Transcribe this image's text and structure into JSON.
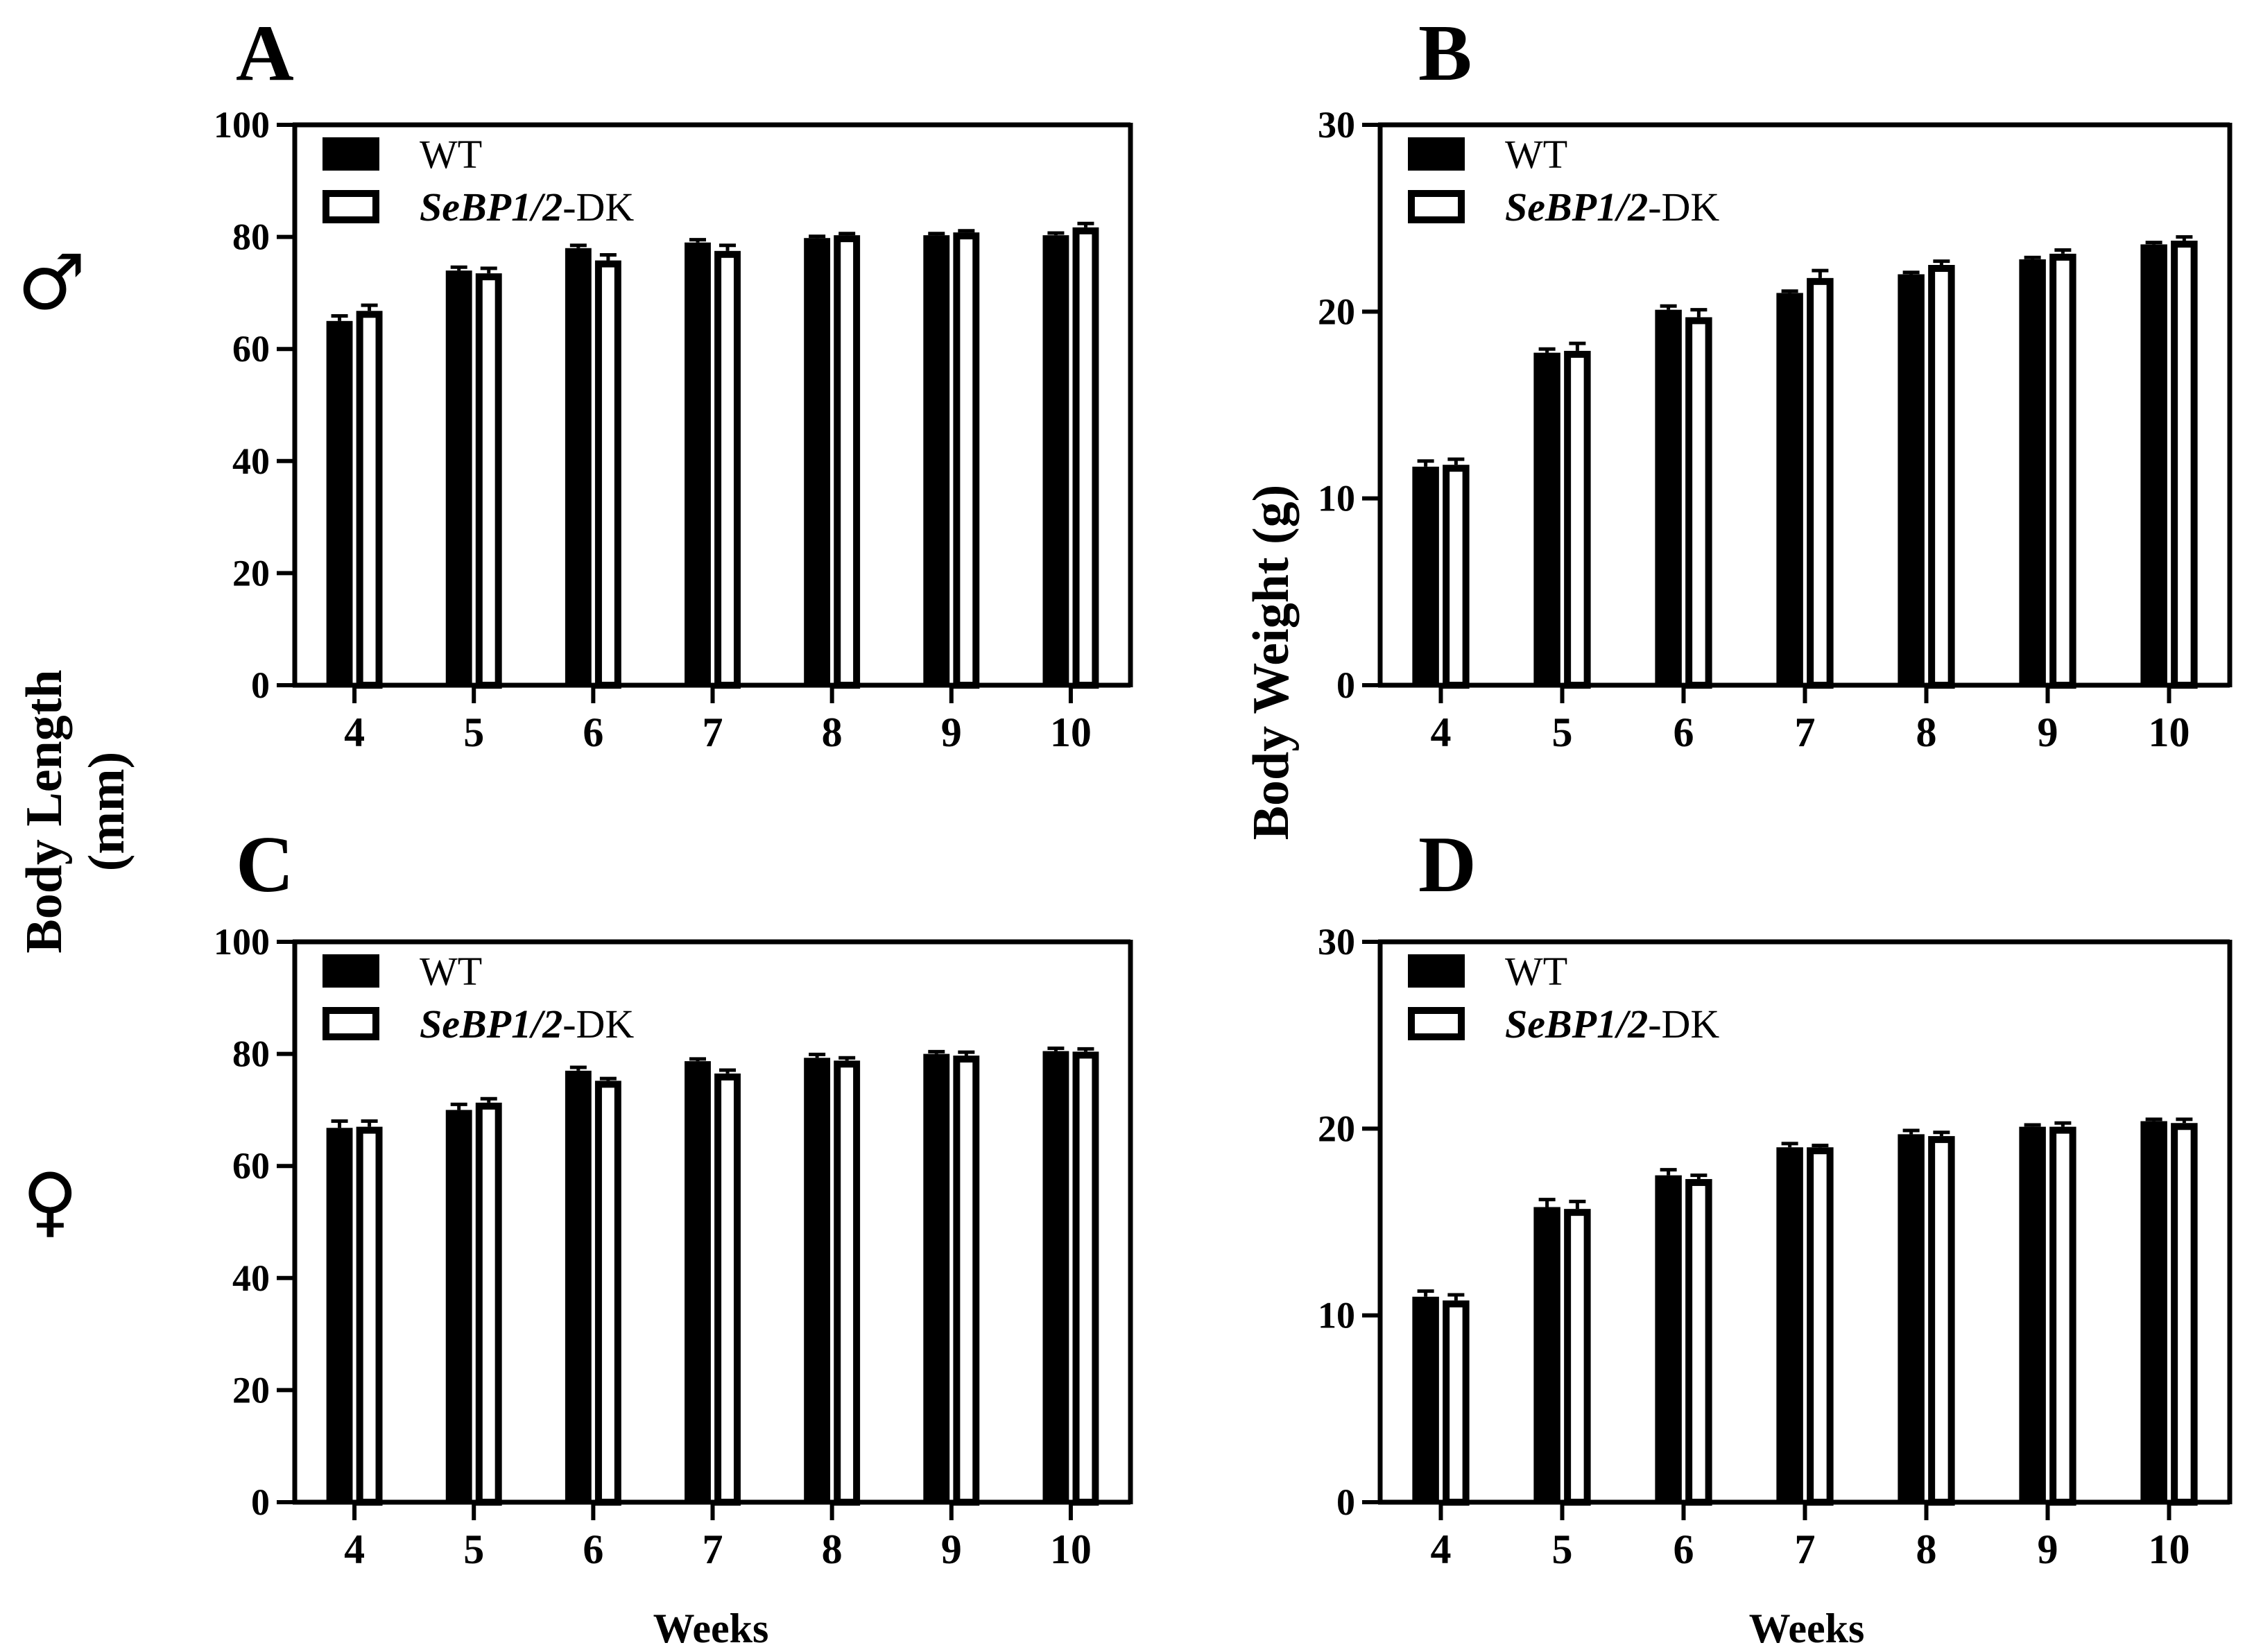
{
  "figure": {
    "sex_labels": {
      "male": "♂",
      "female": "♀"
    },
    "left_ylabel_line1": "Body Length",
    "left_ylabel_line2": "(mm)",
    "right_ylabel": "Body Weight (g)",
    "xlabel": "Weeks"
  },
  "chart_data": [
    {
      "panel": "A",
      "type": "bar",
      "categories": [
        "4",
        "5",
        "6",
        "7",
        "8",
        "9",
        "10"
      ],
      "ylim": [
        0,
        100
      ],
      "yticks": [
        "0",
        "20",
        "40",
        "60",
        "80",
        "100"
      ],
      "ytick_values": [
        0,
        20,
        40,
        60,
        80,
        100
      ],
      "xlabel": "",
      "legend": {
        "placement": "top-left"
      },
      "series": [
        {
          "name": "WT",
          "values": [
            65.0,
            74.0,
            78.0,
            79.0,
            79.8,
            80.3,
            80.3
          ],
          "errors": [
            0.9,
            0.6,
            0.5,
            0.5,
            0.3,
            0.3,
            0.4
          ]
        },
        {
          "name_italic": "SeBP1/2",
          "name_suffix": "-DK",
          "values": [
            66.8,
            73.5,
            75.8,
            77.5,
            80.3,
            80.8,
            81.7
          ],
          "errors": [
            1.0,
            0.9,
            1.0,
            1.0,
            0.3,
            0.3,
            0.7
          ]
        }
      ]
    },
    {
      "panel": "B",
      "type": "bar",
      "categories": [
        "4",
        "5",
        "6",
        "7",
        "8",
        "9",
        "10"
      ],
      "ylim": [
        0,
        30
      ],
      "yticks": [
        "0",
        "10",
        "20",
        "30"
      ],
      "ytick_values": [
        0,
        10,
        20,
        30
      ],
      "xlabel": "",
      "legend": {
        "placement": "top-left"
      },
      "series": [
        {
          "name": "WT",
          "values": [
            11.7,
            17.8,
            20.1,
            21.0,
            22.0,
            22.8,
            23.6
          ],
          "errors": [
            0.3,
            0.2,
            0.2,
            0.1,
            0.1,
            0.1,
            0.1
          ]
        },
        {
          "name_italic": "SeBP1/2",
          "name_suffix": "-DK",
          "values": [
            11.8,
            17.9,
            19.7,
            21.8,
            22.5,
            23.1,
            23.8
          ],
          "errors": [
            0.3,
            0.4,
            0.4,
            0.4,
            0.2,
            0.2,
            0.2
          ]
        }
      ]
    },
    {
      "panel": "C",
      "type": "bar",
      "categories": [
        "4",
        "5",
        "6",
        "7",
        "8",
        "9",
        "10"
      ],
      "ylim": [
        0,
        100
      ],
      "yticks": [
        "0",
        "20",
        "40",
        "60",
        "80",
        "100"
      ],
      "ytick_values": [
        0,
        20,
        40,
        60,
        80,
        100
      ],
      "xlabel": "Weeks",
      "legend": {
        "placement": "top-left"
      },
      "series": [
        {
          "name": "WT",
          "values": [
            66.8,
            70.0,
            77.0,
            78.7,
            79.3,
            80.0,
            80.5
          ],
          "errors": [
            1.2,
            1.0,
            0.6,
            0.4,
            0.6,
            0.4,
            0.5
          ]
        },
        {
          "name_italic": "SeBP1/2",
          "name_suffix": "-DK",
          "values": [
            67.0,
            71.3,
            75.2,
            76.5,
            78.8,
            79.7,
            80.4
          ],
          "errors": [
            1.0,
            0.7,
            0.4,
            0.6,
            0.5,
            0.6,
            0.5
          ]
        }
      ]
    },
    {
      "panel": "D",
      "type": "bar",
      "categories": [
        "4",
        "5",
        "6",
        "7",
        "8",
        "9",
        "10"
      ],
      "ylim": [
        0,
        30
      ],
      "yticks": [
        "0",
        "10",
        "20",
        "30"
      ],
      "ytick_values": [
        0,
        10,
        20,
        30
      ],
      "xlabel": "Weeks",
      "legend": {
        "placement": "top-left"
      },
      "series": [
        {
          "name": "WT",
          "values": [
            11.0,
            15.8,
            17.5,
            19.0,
            19.7,
            20.1,
            20.4
          ],
          "errors": [
            0.3,
            0.4,
            0.3,
            0.2,
            0.2,
            0.1,
            0.1
          ]
        },
        {
          "name_italic": "SeBP1/2",
          "name_suffix": "-DK",
          "values": [
            10.8,
            15.7,
            17.3,
            19.0,
            19.6,
            20.1,
            20.3
          ],
          "errors": [
            0.3,
            0.4,
            0.2,
            0.1,
            0.2,
            0.2,
            0.2
          ]
        }
      ]
    }
  ]
}
